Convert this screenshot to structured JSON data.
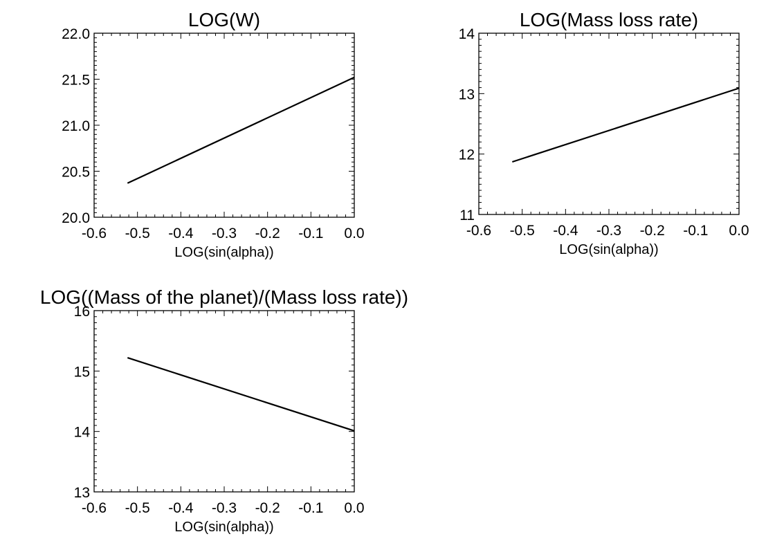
{
  "chart_data": [
    {
      "type": "line",
      "title": "LOG(W)",
      "xlabel": "LOG(sin(alpha))",
      "ylabel": "",
      "xlim": [
        -0.6,
        0.0
      ],
      "ylim": [
        20.0,
        22.0
      ],
      "xticks": [
        "-0.6",
        "-0.5",
        "-0.4",
        "-0.3",
        "-0.2",
        "-0.1",
        "0.0"
      ],
      "yticks": [
        "20.0",
        "20.5",
        "21.0",
        "21.5",
        "22.0"
      ],
      "grid": false,
      "series": [
        {
          "x": [
            -0.523,
            0.0
          ],
          "y": [
            20.37,
            21.52
          ]
        }
      ],
      "colors": {
        "line": "#000000",
        "axes": "#000000",
        "background": "#ffffff"
      }
    },
    {
      "type": "line",
      "title": "LOG(Mass loss rate)",
      "xlabel": "LOG(sin(alpha))",
      "ylabel": "",
      "xlim": [
        -0.6,
        0.0
      ],
      "ylim": [
        11,
        14
      ],
      "xticks": [
        "-0.6",
        "-0.5",
        "-0.4",
        "-0.3",
        "-0.2",
        "-0.1",
        "0.0"
      ],
      "yticks": [
        "11",
        "12",
        "13",
        "14"
      ],
      "grid": false,
      "series": [
        {
          "x": [
            -0.523,
            0.0
          ],
          "y": [
            11.87,
            13.09
          ]
        }
      ],
      "colors": {
        "line": "#000000",
        "axes": "#000000",
        "background": "#ffffff"
      }
    },
    {
      "type": "line",
      "title": "LOG((Mass of the planet)/(Mass loss rate))",
      "xlabel": "LOG(sin(alpha))",
      "ylabel": "",
      "xlim": [
        -0.6,
        0.0
      ],
      "ylim": [
        13,
        16
      ],
      "xticks": [
        "-0.6",
        "-0.5",
        "-0.4",
        "-0.3",
        "-0.2",
        "-0.1",
        "0.0"
      ],
      "yticks": [
        "13",
        "14",
        "15",
        "16"
      ],
      "grid": false,
      "series": [
        {
          "x": [
            -0.523,
            0.0
          ],
          "y": [
            15.22,
            14.01
          ]
        }
      ],
      "colors": {
        "line": "#000000",
        "axes": "#000000",
        "background": "#ffffff"
      }
    }
  ]
}
